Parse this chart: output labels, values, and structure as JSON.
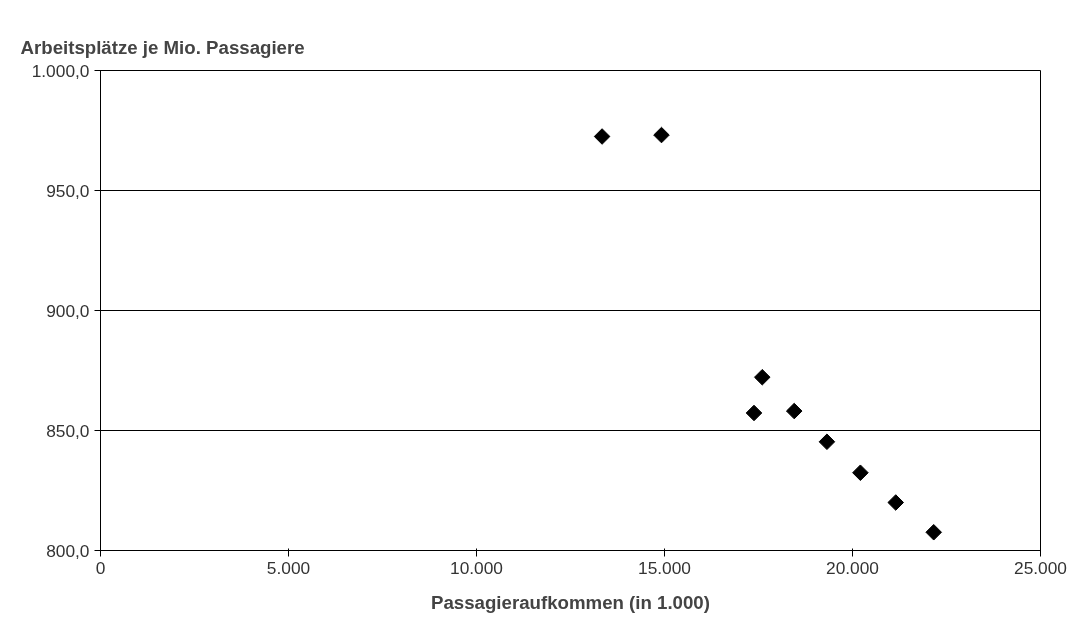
{
  "chart_data": {
    "type": "scatter",
    "title": "Arbeitsplätze je Mio. Passagiere",
    "xlabel": "Passagieraufkommen (in 1.000)",
    "x": [
      13340,
      14920,
      17600,
      17380,
      18450,
      19320,
      20210,
      21150,
      22160
    ],
    "series": [
      {
        "color": "#000000",
        "values": [
          972.5,
          973.1,
          872.2,
          857.3,
          858.1,
          845.3,
          832.4,
          820.0,
          807.6
        ]
      }
    ],
    "marker": "diamond",
    "xlim": [
      0,
      25000
    ],
    "ylim": [
      800,
      1000
    ],
    "xticks": [
      {
        "value": 0,
        "label": "0"
      },
      {
        "value": 5000,
        "label": "5.000"
      },
      {
        "value": 10000,
        "label": "10.000"
      },
      {
        "value": 15000,
        "label": "15.000"
      },
      {
        "value": 20000,
        "label": "20.000"
      },
      {
        "value": 25000,
        "label": "25.000"
      }
    ],
    "yticks": [
      {
        "value": 800,
        "label": "800,0"
      },
      {
        "value": 850,
        "label": "850,0"
      },
      {
        "value": 900,
        "label": "900,0"
      },
      {
        "value": 950,
        "label": "950,0"
      },
      {
        "value": 1000,
        "label": "1.000,0"
      }
    ],
    "grid": "y"
  }
}
